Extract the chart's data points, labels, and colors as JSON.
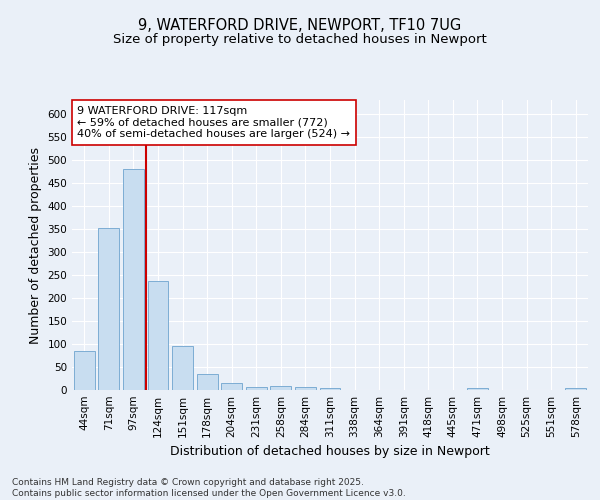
{
  "title_line1": "9, WATERFORD DRIVE, NEWPORT, TF10 7UG",
  "title_line2": "Size of property relative to detached houses in Newport",
  "xlabel": "Distribution of detached houses by size in Newport",
  "ylabel": "Number of detached properties",
  "categories": [
    "44sqm",
    "71sqm",
    "97sqm",
    "124sqm",
    "151sqm",
    "178sqm",
    "204sqm",
    "231sqm",
    "258sqm",
    "284sqm",
    "311sqm",
    "338sqm",
    "364sqm",
    "391sqm",
    "418sqm",
    "445sqm",
    "471sqm",
    "498sqm",
    "525sqm",
    "551sqm",
    "578sqm"
  ],
  "values": [
    85,
    352,
    480,
    237,
    96,
    35,
    16,
    7,
    8,
    7,
    4,
    0,
    0,
    0,
    0,
    0,
    5,
    0,
    0,
    0,
    5
  ],
  "bar_color": "#c8ddf0",
  "bar_edge_color": "#7dadd4",
  "background_color": "#eaf0f8",
  "grid_color": "#ffffff",
  "plot_bg_color": "#eaf0f8",
  "ylim": [
    0,
    630
  ],
  "yticks": [
    0,
    50,
    100,
    150,
    200,
    250,
    300,
    350,
    400,
    450,
    500,
    550,
    600
  ],
  "vline_x": 2.5,
  "vline_color": "#cc0000",
  "annotation_text": "9 WATERFORD DRIVE: 117sqm\n← 59% of detached houses are smaller (772)\n40% of semi-detached houses are larger (524) →",
  "annotation_box_facecolor": "#ffffff",
  "annotation_box_edgecolor": "#cc0000",
  "footer_text": "Contains HM Land Registry data © Crown copyright and database right 2025.\nContains public sector information licensed under the Open Government Licence v3.0.",
  "title_fontsize": 10.5,
  "subtitle_fontsize": 9.5,
  "axis_label_fontsize": 9,
  "tick_fontsize": 7.5,
  "annotation_fontsize": 8,
  "footer_fontsize": 6.5
}
